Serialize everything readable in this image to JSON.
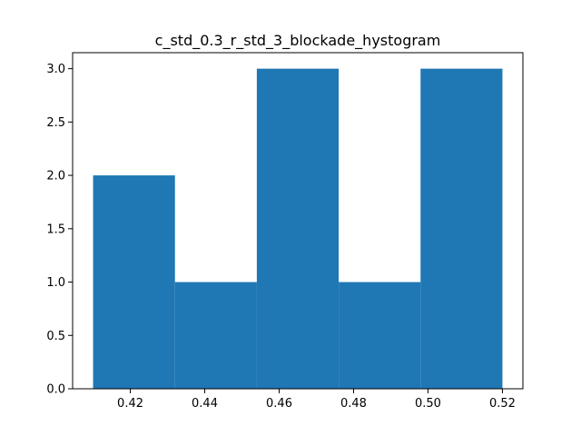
{
  "chart_data": {
    "type": "bar",
    "title": "c_std_0.3_r_std_3_blockade_hystogram",
    "xlabel": "",
    "ylabel": "",
    "bin_edges": [
      0.41,
      0.432,
      0.454,
      0.476,
      0.498,
      0.52
    ],
    "values": [
      2,
      1,
      3,
      1,
      3
    ],
    "xlim": [
      0.4045,
      0.5255
    ],
    "ylim": [
      0,
      3.15
    ],
    "x_ticks": [
      0.42,
      0.44,
      0.46,
      0.48,
      0.5,
      0.52
    ],
    "x_tick_labels": [
      "0.42",
      "0.44",
      "0.46",
      "0.48",
      "0.50",
      "0.52"
    ],
    "y_ticks": [
      0,
      0.5,
      1,
      1.5,
      2,
      2.5,
      3
    ],
    "y_tick_labels": [
      "0.0",
      "0.5",
      "1.0",
      "1.5",
      "2.0",
      "2.5",
      "3.0"
    ],
    "bar_color": "#1f77b4",
    "grid": false
  }
}
